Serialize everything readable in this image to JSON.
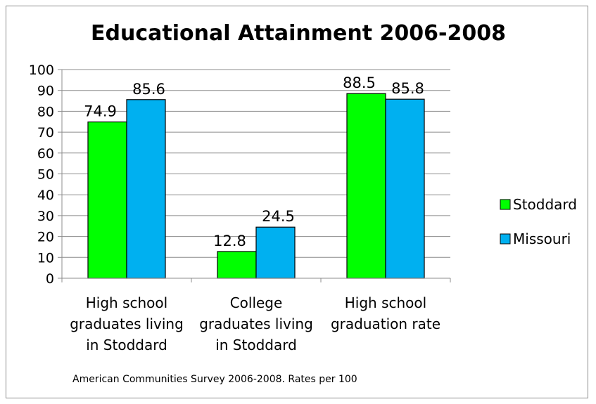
{
  "chart_data": {
    "type": "bar",
    "title": "Educational Attainment 2006-2008",
    "categories": [
      [
        "High school",
        "graduates living",
        "in Stoddard"
      ],
      [
        "College",
        "graduates living",
        "in Stoddard"
      ],
      [
        "High school",
        "graduation rate"
      ]
    ],
    "series": [
      {
        "name": "Stoddard",
        "color": "#00ff00",
        "values": [
          74.9,
          12.8,
          88.5
        ]
      },
      {
        "name": "Missouri",
        "color": "#00b0f0",
        "values": [
          85.6,
          24.5,
          85.8
        ]
      }
    ],
    "ylim": [
      0,
      100
    ],
    "yticks": [
      0,
      10,
      20,
      30,
      40,
      50,
      60,
      70,
      80,
      90,
      100
    ],
    "grid": true,
    "legend_position": "right",
    "footnote": "American Communities Survey 2006-2008. Rates per 100"
  }
}
